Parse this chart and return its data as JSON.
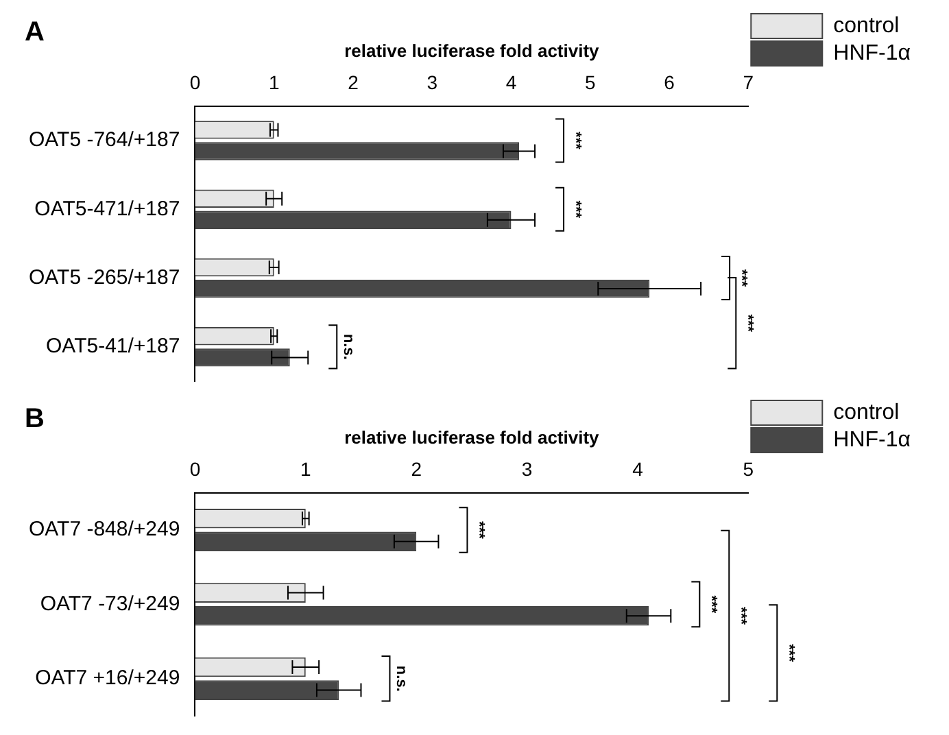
{
  "chart_data": [
    {
      "type": "bar",
      "orientation": "horizontal",
      "title": "A",
      "xlabel": "relative luciferase fold activity",
      "categories": [
        "OAT5 -764/+187",
        "OAT5-471/+187",
        "OAT5 -265/+187",
        "OAT5-41/+187"
      ],
      "series": [
        {
          "name": "control",
          "color": "#e6e6e6",
          "values": [
            1.0,
            1.0,
            1.0,
            1.0
          ],
          "errors": [
            0.05,
            0.1,
            0.06,
            0.04
          ]
        },
        {
          "name": "HNF-1α",
          "color": "#474747",
          "values": [
            4.1,
            4.0,
            5.75,
            1.2
          ],
          "errors": [
            0.2,
            0.3,
            0.65,
            0.23
          ]
        }
      ],
      "xlim": [
        0,
        7
      ],
      "xticks": [
        0,
        1,
        2,
        3,
        4,
        5,
        6,
        7
      ],
      "grid": false,
      "legend": "top right",
      "annotations": [
        "***",
        "***",
        "***",
        "n.s.",
        "***"
      ]
    },
    {
      "type": "bar",
      "orientation": "horizontal",
      "title": "B",
      "xlabel": "relative luciferase fold activity",
      "categories": [
        "OAT7 -848/+249",
        "OAT7 -73/+249",
        "OAT7 +16/+249"
      ],
      "series": [
        {
          "name": "control",
          "color": "#e6e6e6",
          "values": [
            1.0,
            1.0,
            1.0
          ],
          "errors": [
            0.03,
            0.16,
            0.12
          ]
        },
        {
          "name": "HNF-1α",
          "color": "#474747",
          "values": [
            2.0,
            4.1,
            1.3
          ],
          "errors": [
            0.2,
            0.2,
            0.2
          ]
        }
      ],
      "xlim": [
        0,
        5
      ],
      "xticks": [
        0,
        1,
        2,
        3,
        4,
        5
      ],
      "grid": false,
      "legend": "top right",
      "annotations": [
        "***",
        "***",
        "n.s.",
        "***",
        "***"
      ]
    }
  ]
}
